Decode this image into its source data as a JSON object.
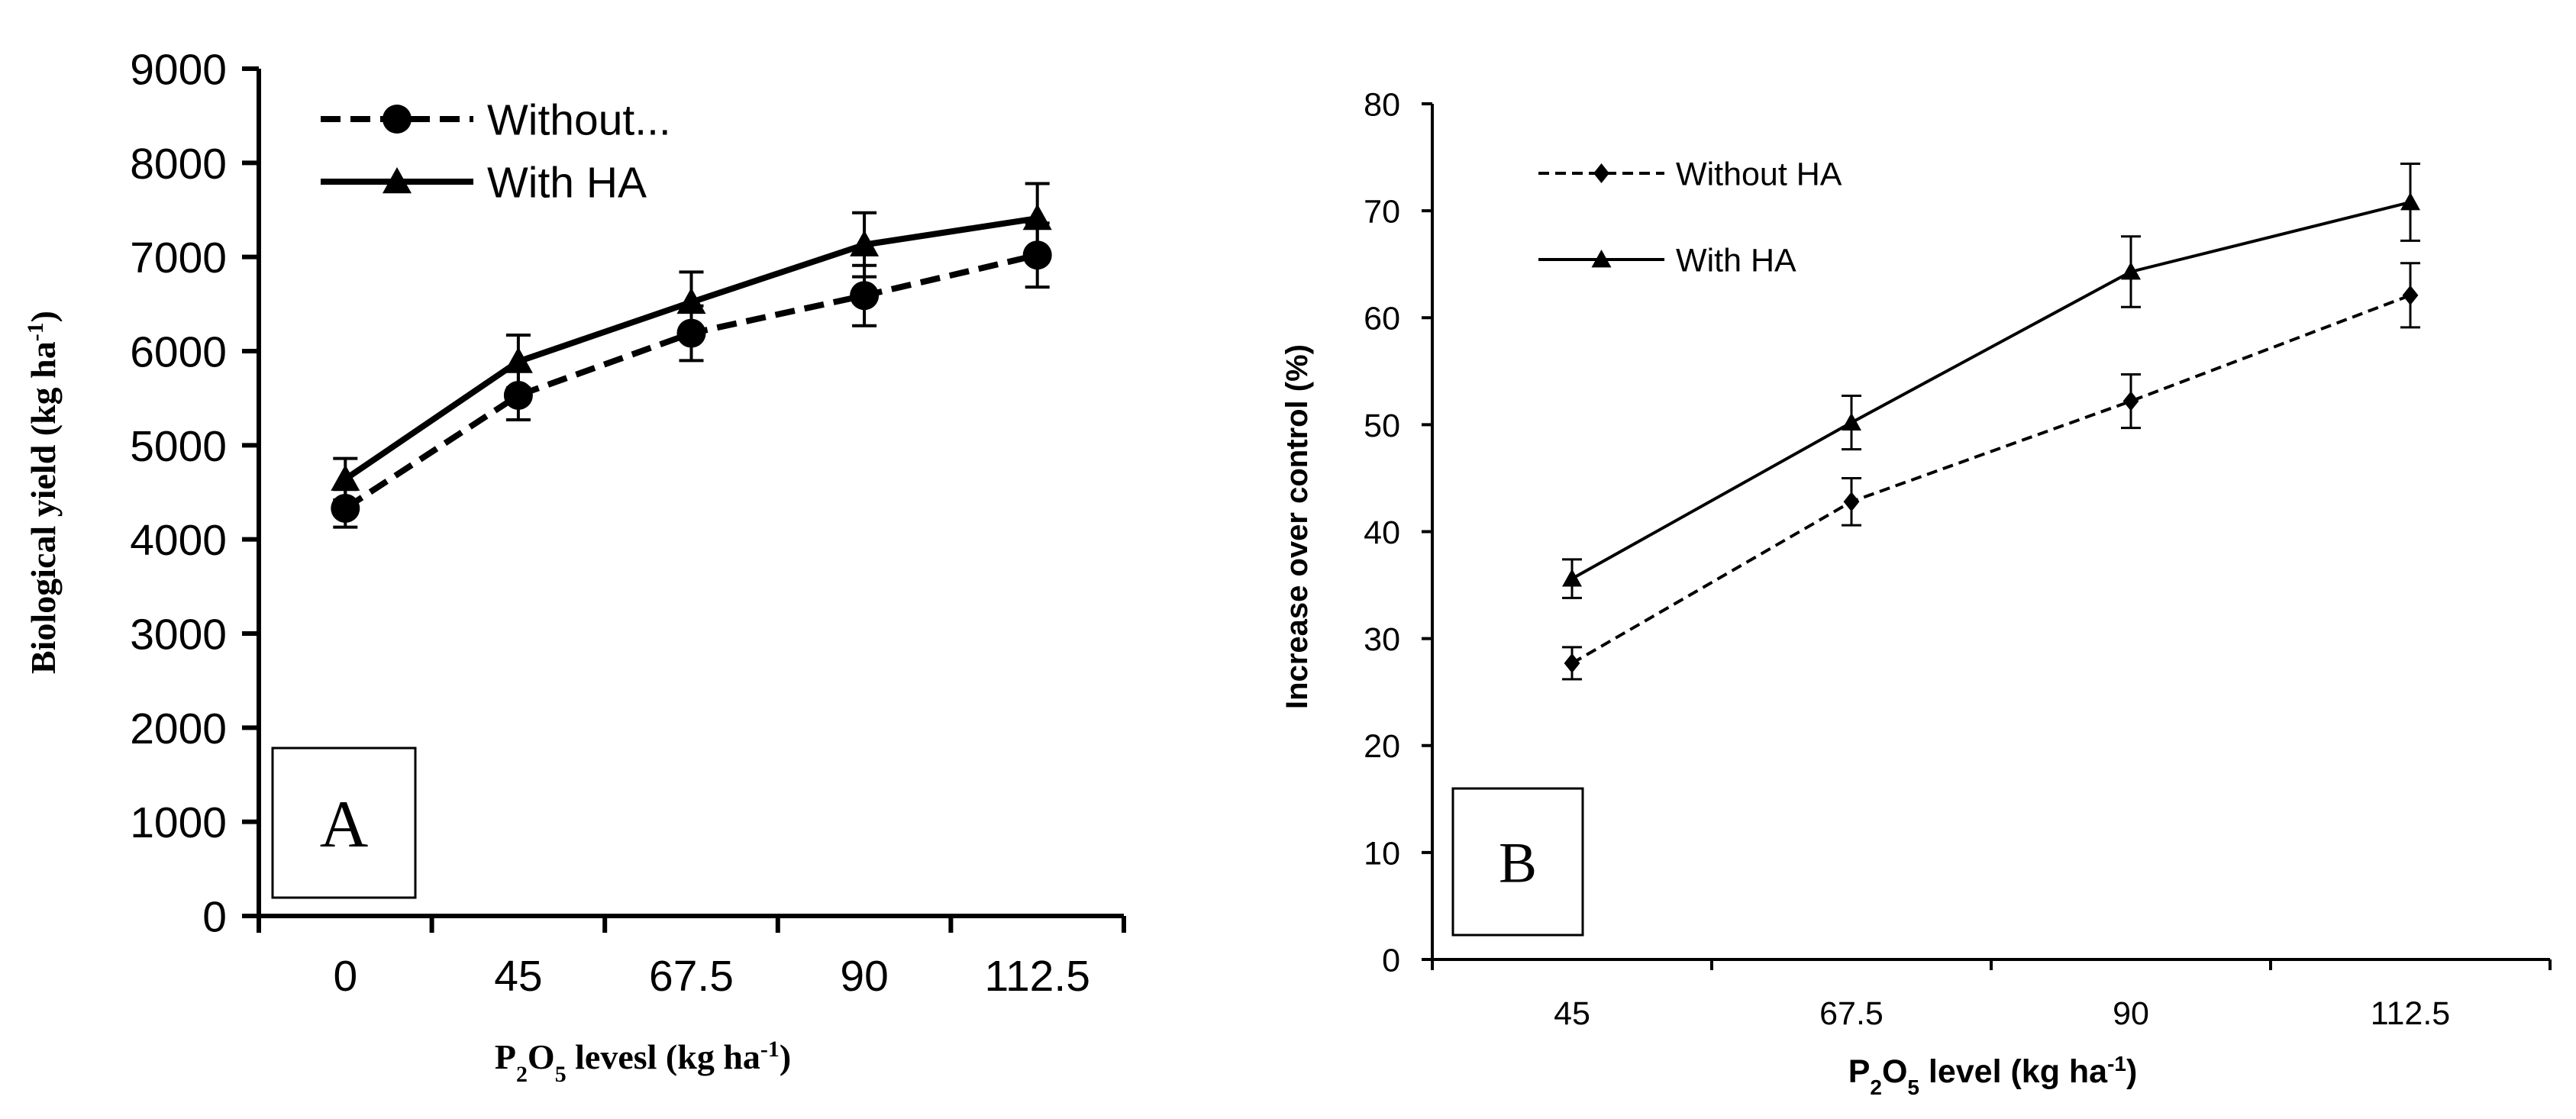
{
  "chart_data": [
    {
      "panel": "A",
      "type": "line",
      "title": "",
      "panel_label": "A",
      "categories": [
        "0",
        "45",
        "67.5",
        "90",
        "112.5"
      ],
      "xlabel": {
        "main": "P",
        "sub1": "2",
        "mid": "O",
        "sub2": "5",
        "rest": " levesl (kg ha",
        "sup": "-1",
        "end": ")"
      },
      "ylabel": {
        "main": "Biological yield (kg ha",
        "sup": "-1",
        "end": ")"
      },
      "ylim": [
        0,
        9000
      ],
      "yticks": [
        0,
        1000,
        2000,
        3000,
        4000,
        5000,
        6000,
        7000,
        8000,
        9000
      ],
      "ytick_labels": [
        "0",
        "1000",
        "2000",
        "3000",
        "4000",
        "5000",
        "6000",
        "7000",
        "8000",
        "9000"
      ],
      "legend_position": "top-left",
      "series": [
        {
          "name": "Without...",
          "style": "dashed",
          "marker": "circle",
          "values": [
            4330,
            5530,
            6190,
            6590,
            7020
          ],
          "errors": [
            200,
            260,
            290,
            320,
            340
          ]
        },
        {
          "name": "With HA",
          "style": "solid",
          "marker": "triangle",
          "values": [
            4640,
            5890,
            6520,
            7130,
            7410
          ],
          "errors": [
            220,
            280,
            320,
            340,
            370
          ]
        }
      ]
    },
    {
      "panel": "B",
      "type": "line",
      "title": "",
      "panel_label": "B",
      "categories": [
        "45",
        "67.5",
        "90",
        "112.5"
      ],
      "xlabel": {
        "main": "P",
        "sub1": "2",
        "mid": "O",
        "sub2": "5",
        "rest": " level (kg ha",
        "sup": "-1",
        "end": ")"
      },
      "ylabel": "Increase over control (%)",
      "ylim": [
        0,
        80
      ],
      "yticks": [
        0,
        10,
        20,
        30,
        40,
        50,
        60,
        70,
        80
      ],
      "ytick_labels": [
        "0",
        "10",
        "20",
        "30",
        "40",
        "50",
        "60",
        "70",
        "80"
      ],
      "legend_position": "top-left",
      "series": [
        {
          "name": "Without HA",
          "style": "dashed",
          "marker": "diamond",
          "values": [
            27.7,
            42.8,
            52.2,
            62.1
          ],
          "errors": [
            1.5,
            2.2,
            2.5,
            3.0
          ]
        },
        {
          "name": "With HA",
          "style": "solid",
          "marker": "triangle",
          "values": [
            35.6,
            50.2,
            64.3,
            70.8
          ],
          "errors": [
            1.8,
            2.5,
            3.3,
            3.6
          ]
        }
      ]
    }
  ]
}
